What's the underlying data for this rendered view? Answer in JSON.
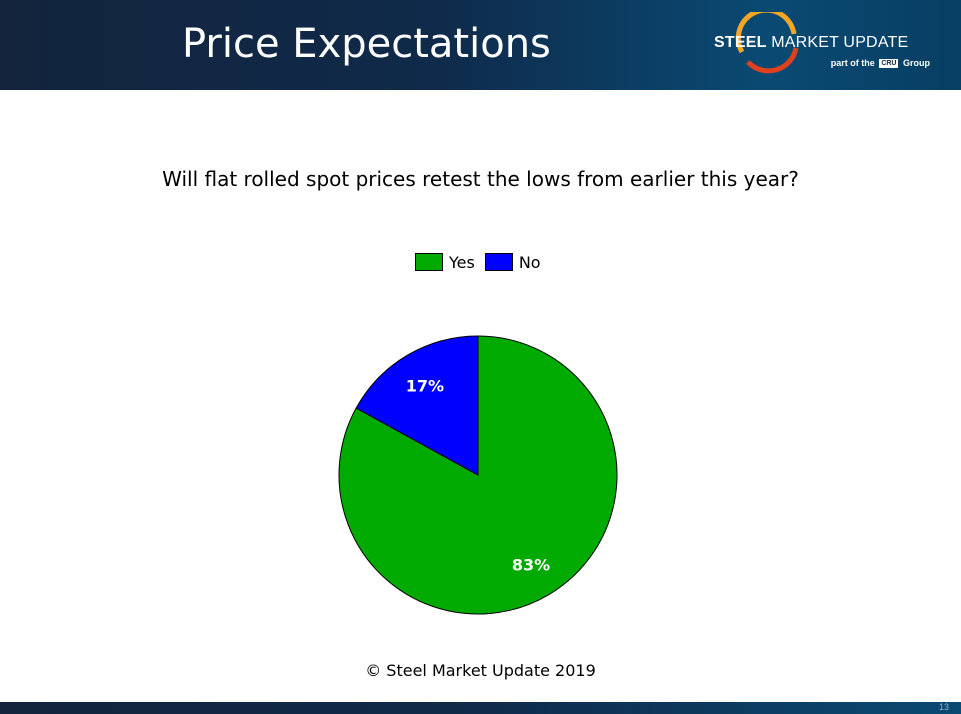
{
  "header": {
    "title": "Price Expectations",
    "logo": {
      "brand_bold": "STEEL",
      "brand_rest": " MARKET UPDATE",
      "sub_prefix": "part of the",
      "sub_box": "CRU",
      "sub_suffix": "Group"
    }
  },
  "chart_data": {
    "type": "pie",
    "title": "Will flat rolled spot prices retest the lows from earlier this year?",
    "legend_position": "top",
    "slices": [
      {
        "label": "Yes",
        "value": 83,
        "display": "83%",
        "color": "#00aa00"
      },
      {
        "label": "No",
        "value": 17,
        "display": "17%",
        "color": "#0000ff"
      }
    ]
  },
  "footer": {
    "copyright": "© Steel Market Update 2019",
    "slide_number": "13"
  },
  "colors": {
    "header_bg": "#0f2a4a",
    "yes": "#00aa00",
    "no": "#0000ff"
  }
}
